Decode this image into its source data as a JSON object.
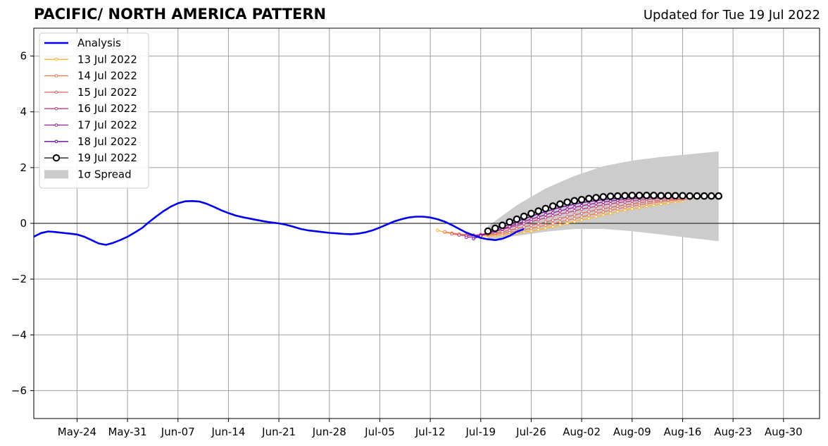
{
  "header": {
    "title": "PACIFIC/ NORTH AMERICA PATTERN",
    "updated": "Updated for Tue 19 Jul 2022"
  },
  "chart_data": {
    "type": "line",
    "title": "PACIFIC/ NORTH AMERICA PATTERN",
    "subtitle": "Updated for Tue 19 Jul 2022",
    "xlabel": "",
    "ylabel": "",
    "xlim": [
      "2022-05-18",
      "2022-09-04"
    ],
    "ylim": [
      -7,
      7
    ],
    "x_ticks": [
      "May-24",
      "May-31",
      "Jun-07",
      "Jun-14",
      "Jun-21",
      "Jun-28",
      "Jul-05",
      "Jul-12",
      "Jul-19",
      "Jul-26",
      "Aug-02",
      "Aug-09",
      "Aug-16",
      "Aug-23",
      "Aug-30"
    ],
    "x_tick_dates": [
      "2022-05-24",
      "2022-05-31",
      "2022-06-07",
      "2022-06-14",
      "2022-06-21",
      "2022-06-28",
      "2022-07-05",
      "2022-07-12",
      "2022-07-19",
      "2022-07-26",
      "2022-08-02",
      "2022-08-09",
      "2022-08-16",
      "2022-08-23",
      "2022-08-30"
    ],
    "y_ticks": [
      -6,
      -4,
      -2,
      0,
      2,
      4,
      6
    ],
    "y_tick_labels": [
      "−6",
      "−4",
      "−2",
      "0",
      "2",
      "4",
      "6"
    ],
    "grid": true,
    "legend_position": "top-left",
    "legend": [
      "Analysis",
      "13 Jul 2022",
      "14 Jul 2022",
      "15 Jul 2022",
      "16 Jul 2022",
      "17 Jul 2022",
      "18 Jul 2022",
      "19 Jul 2022",
      "1σ Spread"
    ],
    "analysis": {
      "name": "Analysis",
      "color": "#0000ee",
      "start": "2022-05-18",
      "values": [
        -0.48,
        -0.35,
        -0.29,
        -0.31,
        -0.34,
        -0.37,
        -0.4,
        -0.48,
        -0.6,
        -0.72,
        -0.77,
        -0.7,
        -0.6,
        -0.48,
        -0.33,
        -0.17,
        0.05,
        0.25,
        0.44,
        0.6,
        0.72,
        0.79,
        0.8,
        0.78,
        0.7,
        0.59,
        0.47,
        0.37,
        0.28,
        0.22,
        0.17,
        0.12,
        0.07,
        0.03,
        0.0,
        -0.05,
        -0.12,
        -0.2,
        -0.25,
        -0.28,
        -0.31,
        -0.34,
        -0.36,
        -0.38,
        -0.39,
        -0.37,
        -0.32,
        -0.25,
        -0.15,
        -0.04,
        0.07,
        0.15,
        0.21,
        0.24,
        0.24,
        0.21,
        0.15,
        0.06,
        -0.06,
        -0.2,
        -0.33,
        -0.43,
        -0.52,
        -0.57,
        -0.6,
        -0.55,
        -0.45,
        -0.3,
        -0.2
      ]
    },
    "forecasts": [
      {
        "name": "13 Jul 2022",
        "color": "#fdb42f",
        "start": "2022-07-13",
        "values": [
          -0.25,
          -0.32,
          -0.37,
          -0.4,
          -0.42,
          -0.44,
          -0.45,
          -0.45,
          -0.44,
          -0.42,
          -0.39,
          -0.35,
          -0.31,
          -0.27,
          -0.22,
          -0.17,
          -0.12,
          -0.06,
          0.0,
          0.06,
          0.12,
          0.18,
          0.24,
          0.3,
          0.36,
          0.42,
          0.47,
          0.52,
          0.56,
          0.61,
          0.65,
          0.69,
          0.73,
          0.77,
          0.8
        ]
      },
      {
        "name": "14 Jul 2022",
        "color": "#ed7953",
        "start": "2022-07-14",
        "values": [
          -0.3,
          -0.35,
          -0.38,
          -0.41,
          -0.42,
          -0.42,
          -0.41,
          -0.39,
          -0.36,
          -0.32,
          -0.28,
          -0.23,
          -0.18,
          -0.13,
          -0.07,
          -0.01,
          0.05,
          0.11,
          0.17,
          0.23,
          0.29,
          0.35,
          0.41,
          0.47,
          0.52,
          0.57,
          0.62,
          0.66,
          0.7,
          0.74,
          0.78,
          0.81,
          0.84,
          0.86,
          0.88
        ]
      },
      {
        "name": "15 Jul 2022",
        "color": "#e06363",
        "start": "2022-07-15",
        "values": [
          -0.38,
          -0.42,
          -0.44,
          -0.44,
          -0.42,
          -0.39,
          -0.35,
          -0.3,
          -0.25,
          -0.19,
          -0.13,
          -0.07,
          -0.01,
          0.05,
          0.11,
          0.17,
          0.24,
          0.3,
          0.36,
          0.42,
          0.47,
          0.52,
          0.57,
          0.62,
          0.66,
          0.7,
          0.74,
          0.77,
          0.8,
          0.83,
          0.85,
          0.87,
          0.88
        ]
      },
      {
        "name": "16 Jul 2022",
        "color": "#c23c81",
        "start": "2022-07-16",
        "values": [
          -0.42,
          -0.44,
          -0.43,
          -0.4,
          -0.35,
          -0.29,
          -0.22,
          -0.15,
          -0.08,
          -0.01,
          0.06,
          0.13,
          0.2,
          0.27,
          0.33,
          0.39,
          0.45,
          0.51,
          0.56,
          0.61,
          0.66,
          0.7,
          0.74,
          0.77,
          0.8,
          0.83,
          0.86,
          0.88,
          0.9,
          0.91,
          0.92
        ]
      },
      {
        "name": "17 Jul 2022",
        "color": "#9c179e",
        "start": "2022-07-17",
        "values": [
          -0.5,
          -0.48,
          -0.43,
          -0.36,
          -0.28,
          -0.2,
          -0.11,
          -0.02,
          0.07,
          0.15,
          0.23,
          0.31,
          0.38,
          0.45,
          0.51,
          0.57,
          0.63,
          0.68,
          0.72,
          0.76,
          0.8,
          0.83,
          0.86,
          0.88,
          0.9,
          0.92,
          0.93,
          0.94,
          0.95
        ]
      },
      {
        "name": "18 Jul 2022",
        "color": "#6a00a8",
        "start": "2022-07-18",
        "values": [
          -0.55,
          -0.45,
          -0.34,
          -0.23,
          -0.13,
          -0.03,
          0.07,
          0.16,
          0.25,
          0.34,
          0.42,
          0.5,
          0.57,
          0.63,
          0.69,
          0.74,
          0.78,
          0.82,
          0.85,
          0.88,
          0.9,
          0.92,
          0.94,
          0.95,
          0.96,
          0.97,
          0.97,
          0.98
        ]
      },
      {
        "name": "19 Jul 2022",
        "color": "#000000",
        "start": "2022-07-20",
        "markerFill": "#ffffff",
        "values": [
          -0.28,
          -0.18,
          -0.07,
          0.05,
          0.15,
          0.25,
          0.35,
          0.44,
          0.53,
          0.62,
          0.69,
          0.76,
          0.81,
          0.85,
          0.89,
          0.92,
          0.95,
          0.97,
          0.98,
          0.99,
          1.0,
          1.0,
          1.0,
          1.0,
          0.99,
          0.99,
          0.99,
          0.99,
          0.98,
          0.98,
          0.98,
          0.98,
          0.98
        ]
      }
    ],
    "spread": {
      "name": "1σ Spread",
      "color": "#cccccc",
      "dates": [
        "2022-07-20",
        "2022-07-24",
        "2022-07-28",
        "2022-08-01",
        "2022-08-05",
        "2022-08-09",
        "2022-08-13",
        "2022-08-17",
        "2022-08-21"
      ],
      "upper": [
        -0.1,
        0.65,
        1.25,
        1.7,
        2.05,
        2.25,
        2.38,
        2.48,
        2.58
      ],
      "lower": [
        -0.58,
        -0.45,
        -0.3,
        -0.2,
        -0.2,
        -0.28,
        -0.4,
        -0.52,
        -0.64
      ]
    }
  }
}
